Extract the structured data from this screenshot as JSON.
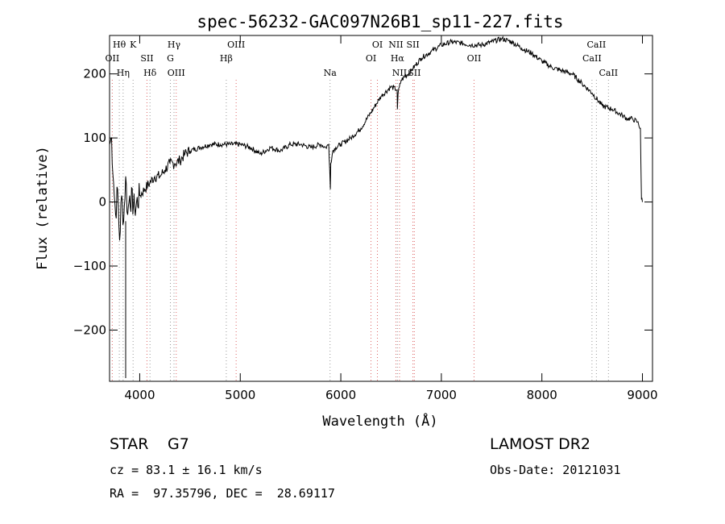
{
  "chart_data": {
    "type": "line",
    "title": "spec-56232-GAC097N26B1_sp11-227.fits",
    "xlabel": "Wavelength (Å)",
    "ylabel": "Flux (relative)",
    "xlim": [
      3700,
      9100
    ],
    "ylim": [
      -280,
      260
    ],
    "xticks": [
      4000,
      5000,
      6000,
      7000,
      8000,
      9000
    ],
    "yticks": [
      -200,
      -100,
      0,
      100,
      200
    ],
    "xtick_labels": [
      "4000",
      "5000",
      "6000",
      "7000",
      "8000",
      "9000"
    ],
    "ytick_labels": [
      "−200",
      "−100",
      "0",
      "100",
      "200"
    ],
    "grid": false,
    "series": [
      {
        "color": "#000000",
        "x": [
          3700,
          3720,
          3740,
          3760,
          3780,
          3800,
          3820,
          3840,
          3860,
          3880,
          3900,
          3950,
          4000,
          4050,
          4100,
          4150,
          4200,
          4250,
          4300,
          4350,
          4400,
          4450,
          4500,
          4600,
          4700,
          4800,
          4900,
          5000,
          5100,
          5200,
          5300,
          5400,
          5500,
          5600,
          5700,
          5800,
          5850,
          5880,
          5890,
          5896,
          5900,
          5920,
          5950,
          6000,
          6100,
          6200,
          6300,
          6400,
          6500,
          6560,
          6563,
          6570,
          6600,
          6700,
          6800,
          6900,
          7000,
          7100,
          7200,
          7300,
          7400,
          7500,
          7600,
          7700,
          7800,
          7900,
          8000,
          8100,
          8200,
          8300,
          8400,
          8500,
          8600,
          8700,
          8800,
          8850,
          8900,
          8950,
          8980,
          8990,
          9000
        ],
        "y": [
          90,
          100,
          30,
          -20,
          20,
          -60,
          10,
          -30,
          40,
          -20,
          10,
          -10,
          10,
          20,
          30,
          40,
          40,
          50,
          60,
          60,
          65,
          75,
          80,
          85,
          90,
          90,
          90,
          90,
          85,
          75,
          85,
          80,
          90,
          90,
          85,
          90,
          85,
          90,
          50,
          20,
          60,
          80,
          85,
          90,
          100,
          115,
          140,
          165,
          180,
          175,
          145,
          170,
          190,
          205,
          225,
          235,
          245,
          250,
          248,
          245,
          245,
          250,
          255,
          250,
          240,
          232,
          220,
          210,
          205,
          200,
          185,
          170,
          150,
          145,
          135,
          130,
          130,
          125,
          115,
          5,
          0
        ]
      }
    ],
    "spectral_lines": [
      {
        "label": "Hθ",
        "x": 3797,
        "color": "#999999"
      },
      {
        "label": "OII",
        "x": 3727,
        "color": "#dd6666"
      },
      {
        "label": "Hη",
        "x": 3835,
        "color": "#999999"
      },
      {
        "label": "K",
        "x": 3934,
        "color": "#999999"
      },
      {
        "label": "SII",
        "x": 4072,
        "color": "#dd6666"
      },
      {
        "label": "Hδ",
        "x": 4102,
        "color": "#999999"
      },
      {
        "label": "Hγ",
        "x": 4341,
        "color": "#999999"
      },
      {
        "label": "G",
        "x": 4305,
        "color": "#999999"
      },
      {
        "label": "OIII",
        "x": 4363,
        "color": "#dd6666"
      },
      {
        "label": "OIII",
        "x": 4959,
        "color": "#dd6666"
      },
      {
        "label": "Hβ",
        "x": 4861,
        "color": "#999999"
      },
      {
        "label": "Na",
        "x": 5893,
        "color": "#999999"
      },
      {
        "label": "OI",
        "x": 6364,
        "color": "#dd6666"
      },
      {
        "label": "OI",
        "x": 6300,
        "color": "#dd6666"
      },
      {
        "label": "NII",
        "x": 6584,
        "color": "#dd6666"
      },
      {
        "label": "SII",
        "x": 6717,
        "color": "#dd6666"
      },
      {
        "label": "Hα",
        "x": 6563,
        "color": "#999999"
      },
      {
        "label": "SII",
        "x": 6731,
        "color": "#dd6666"
      },
      {
        "label": "NII",
        "x": 6548,
        "color": "#dd6666"
      },
      {
        "label": "OII",
        "x": 7325,
        "color": "#dd6666"
      },
      {
        "label": "CaII",
        "x": 8662,
        "color": "#999999"
      },
      {
        "label": "CaII",
        "x": 8542,
        "color": "#999999"
      },
      {
        "label": "CaII",
        "x": 8498,
        "color": "#999999"
      }
    ]
  },
  "info": {
    "class": "STAR",
    "subclass": "G7",
    "cz": "cz = 83.1 ± 16.1 km/s",
    "coords": "RA =  97.35796, DEC =  28.69117",
    "survey": "LAMOST DR2",
    "obs_date": "Obs-Date: 20121031"
  }
}
